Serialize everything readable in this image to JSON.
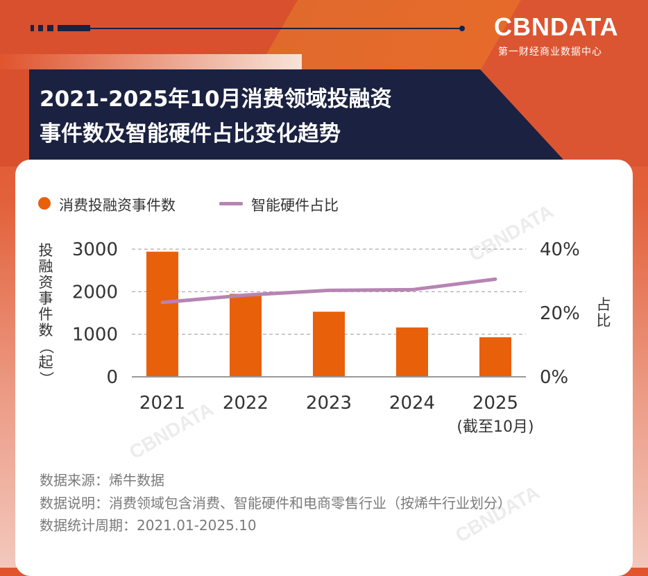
{
  "brand": {
    "logo": "CBNDATA",
    "subtitle": "第一财经商业数据中心"
  },
  "title": {
    "line1": "2021-2025年10月消费领域投融资",
    "line2": "事件数及智能硬件占比变化趋势"
  },
  "colors": {
    "bar": "#e8600a",
    "line": "#b784b3",
    "title_band": "#1b2140"
  },
  "chart_data": {
    "type": "bar+line",
    "categories": [
      "2021",
      "2022",
      "2023",
      "2024",
      "2025"
    ],
    "category_sublabels": [
      "",
      "",
      "",
      "",
      "(截至10月)"
    ],
    "series": [
      {
        "name": "消费投融资事件数",
        "type": "bar",
        "axis": "left",
        "values": [
          2940,
          1950,
          1530,
          1160,
          930
        ]
      },
      {
        "name": "智能硬件占比",
        "type": "line",
        "axis": "right",
        "values": [
          23.3,
          25.6,
          27.1,
          27.3,
          30.6
        ]
      }
    ],
    "ylabel_left": "投融资事件数（起）",
    "ylabel_right": "占比",
    "ylim_left": [
      0,
      3000
    ],
    "yticks_left": [
      "0",
      "1000",
      "2000",
      "3000"
    ],
    "ylim_right": [
      0,
      40
    ],
    "yticks_right": [
      "0%",
      "20%",
      "40%"
    ],
    "grid": true,
    "legend": "top-left"
  },
  "footer": {
    "source": "数据来源：烯牛数据",
    "note": "数据说明：消费领域包含消费、智能硬件和电商零售行业（按烯牛行业划分）",
    "period": "数据统计周期：2021.01-2025.10"
  },
  "watermark": "CBNDATA"
}
